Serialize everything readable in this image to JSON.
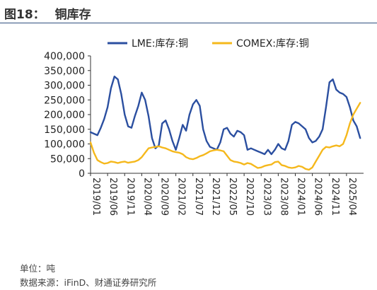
{
  "figure": {
    "number": "图18：",
    "title": "铜库存",
    "unit_note": "单位：吨",
    "source_note": "数据来源：iFinD、财通证券研究所"
  },
  "colors": {
    "lme": "#2b4fa0",
    "comex": "#f5b81c",
    "rule": "#2f4f7f",
    "axis": "#333333"
  },
  "chart_data": {
    "type": "line",
    "title": "铜库存",
    "xlabel": "",
    "ylabel": "",
    "ylim": [
      0,
      400000
    ],
    "yticks": [
      0,
      50000,
      100000,
      150000,
      200000,
      250000,
      300000,
      350000,
      400000
    ],
    "ytick_labels": [
      "0",
      "50,000",
      "100,000",
      "150,000",
      "200,000",
      "250,000",
      "300,000",
      "350,000",
      "400,000"
    ],
    "xlim": [
      "2019-01",
      "2025-09"
    ],
    "xticks": [
      "2019/01",
      "2019/06",
      "2019/11",
      "2020/04",
      "2020/09",
      "2021/02",
      "2021/07",
      "2021/12",
      "2022/05",
      "2022/10",
      "2023/03",
      "2023/08",
      "2024/01",
      "2024/06",
      "2024/11",
      "2025/04"
    ],
    "grid": false,
    "legend_position": "top",
    "series": [
      {
        "name": "LME:库存:铜",
        "x": [
          "2019-01",
          "2019-02",
          "2019-03",
          "2019-04",
          "2019-05",
          "2019-06",
          "2019-07",
          "2019-08",
          "2019-09",
          "2019-10",
          "2019-11",
          "2019-12",
          "2020-01",
          "2020-02",
          "2020-03",
          "2020-04",
          "2020-05",
          "2020-06",
          "2020-07",
          "2020-08",
          "2020-09",
          "2020-10",
          "2020-11",
          "2020-12",
          "2021-01",
          "2021-02",
          "2021-03",
          "2021-04",
          "2021-05",
          "2021-06",
          "2021-07",
          "2021-08",
          "2021-09",
          "2021-10",
          "2021-11",
          "2021-12",
          "2022-01",
          "2022-02",
          "2022-03",
          "2022-04",
          "2022-05",
          "2022-06",
          "2022-07",
          "2022-08",
          "2022-09",
          "2022-10",
          "2022-11",
          "2022-12",
          "2023-01",
          "2023-02",
          "2023-03",
          "2023-04",
          "2023-05",
          "2023-06",
          "2023-07",
          "2023-08",
          "2023-09",
          "2023-10",
          "2023-11",
          "2023-12",
          "2024-01",
          "2024-02",
          "2024-03",
          "2024-04",
          "2024-05",
          "2024-06",
          "2024-07",
          "2024-08",
          "2024-09",
          "2024-10",
          "2024-11",
          "2024-12",
          "2025-01",
          "2025-02",
          "2025-03",
          "2025-04",
          "2025-05",
          "2025-06",
          "2025-07",
          "2025-08"
        ],
        "values": [
          140000,
          135000,
          130000,
          155000,
          185000,
          225000,
          290000,
          330000,
          320000,
          270000,
          200000,
          160000,
          155000,
          195000,
          230000,
          275000,
          250000,
          195000,
          120000,
          85000,
          95000,
          170000,
          180000,
          150000,
          110000,
          80000,
          120000,
          165000,
          145000,
          200000,
          235000,
          250000,
          230000,
          150000,
          110000,
          90000,
          85000,
          80000,
          105000,
          150000,
          155000,
          135000,
          125000,
          145000,
          140000,
          130000,
          80000,
          85000,
          80000,
          75000,
          70000,
          65000,
          80000,
          65000,
          80000,
          100000,
          85000,
          80000,
          110000,
          165000,
          175000,
          170000,
          160000,
          150000,
          120000,
          105000,
          110000,
          125000,
          150000,
          225000,
          310000,
          320000,
          285000,
          275000,
          270000,
          260000,
          225000,
          180000,
          160000,
          120000
        ]
      },
      {
        "name": "COMEX:库存:铜",
        "x": [
          "2019-01",
          "2019-02",
          "2019-03",
          "2019-04",
          "2019-05",
          "2019-06",
          "2019-07",
          "2019-08",
          "2019-09",
          "2019-10",
          "2019-11",
          "2019-12",
          "2020-01",
          "2020-02",
          "2020-03",
          "2020-04",
          "2020-05",
          "2020-06",
          "2020-07",
          "2020-08",
          "2020-09",
          "2020-10",
          "2020-11",
          "2020-12",
          "2021-01",
          "2021-02",
          "2021-03",
          "2021-04",
          "2021-05",
          "2021-06",
          "2021-07",
          "2021-08",
          "2021-09",
          "2021-10",
          "2021-11",
          "2021-12",
          "2022-01",
          "2022-02",
          "2022-03",
          "2022-04",
          "2022-05",
          "2022-06",
          "2022-07",
          "2022-08",
          "2022-09",
          "2022-10",
          "2022-11",
          "2022-12",
          "2023-01",
          "2023-02",
          "2023-03",
          "2023-04",
          "2023-05",
          "2023-06",
          "2023-07",
          "2023-08",
          "2023-09",
          "2023-10",
          "2023-11",
          "2023-12",
          "2024-01",
          "2024-02",
          "2024-03",
          "2024-04",
          "2024-05",
          "2024-06",
          "2024-07",
          "2024-08",
          "2024-09",
          "2024-10",
          "2024-11",
          "2024-12",
          "2025-01",
          "2025-02",
          "2025-03",
          "2025-04",
          "2025-05",
          "2025-06",
          "2025-07",
          "2025-08"
        ],
        "values": [
          105000,
          70000,
          45000,
          38000,
          33000,
          35000,
          40000,
          38000,
          35000,
          38000,
          40000,
          36000,
          38000,
          40000,
          45000,
          55000,
          70000,
          85000,
          88000,
          90000,
          92000,
          88000,
          85000,
          80000,
          75000,
          72000,
          70000,
          65000,
          55000,
          50000,
          48000,
          52000,
          58000,
          62000,
          68000,
          75000,
          78000,
          80000,
          78000,
          75000,
          60000,
          45000,
          40000,
          38000,
          35000,
          30000,
          35000,
          32000,
          25000,
          18000,
          20000,
          25000,
          28000,
          30000,
          38000,
          40000,
          28000,
          25000,
          20000,
          18000,
          20000,
          25000,
          22000,
          15000,
          12000,
          20000,
          40000,
          60000,
          80000,
          90000,
          88000,
          92000,
          95000,
          92000,
          100000,
          130000,
          170000,
          200000,
          220000,
          240000
        ]
      }
    ]
  }
}
